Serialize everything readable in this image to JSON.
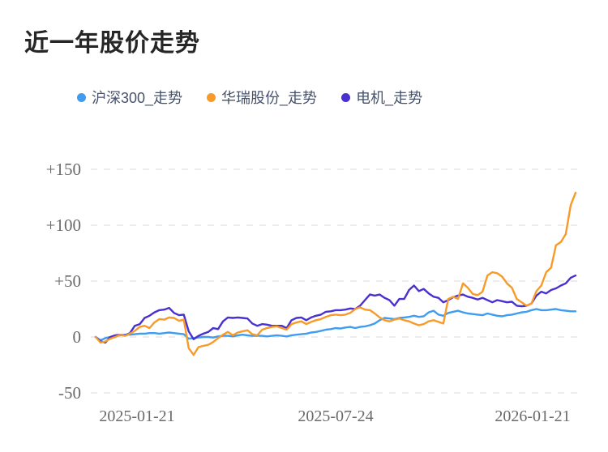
{
  "title": "近一年股价走势",
  "legend": {
    "items": [
      {
        "label": "沪深300_走势"
      },
      {
        "label": "华瑞股份_走势"
      },
      {
        "label": "电机_走势"
      }
    ]
  },
  "colors": {
    "title_text": "#262626",
    "legend_text": "#46516b",
    "axis_text": "#6a6a6a",
    "gridline": "#ececec",
    "background": "#ffffff"
  },
  "chart_data": {
    "type": "line",
    "title": "近一年股价走势",
    "xlabel": "",
    "ylabel": "",
    "ylim": [
      -50,
      150
    ],
    "grid": "horizontal dashed",
    "legend_position": "top",
    "y_ticks": [
      150,
      100,
      50,
      0,
      -50
    ],
    "y_tick_labels": [
      "+150",
      "+100",
      "+50",
      "0",
      "-50"
    ],
    "x_tick_labels": [
      "2025-01-21",
      "2025-07-24",
      "2026-01-21"
    ],
    "x_range_dates": [
      "2025-01-21",
      "2026-01-21"
    ],
    "unit": "percent change",
    "draw_order": [
      0,
      2,
      1
    ],
    "series": [
      {
        "name": "沪深300_走势",
        "color": "#3E9DF1",
        "values": [
          0,
          -3,
          -1,
          0,
          1,
          1.5,
          2,
          2,
          2.5,
          3,
          3,
          3.5,
          3.5,
          3,
          3.5,
          4,
          3.5,
          3,
          2.5,
          -1.5,
          -1,
          -0.5,
          0,
          0,
          -0.5,
          0.5,
          1,
          1,
          0.5,
          1.5,
          2,
          1.5,
          1,
          1,
          1,
          0.5,
          1,
          1.5,
          1,
          0.5,
          1.5,
          2,
          2.5,
          3,
          4,
          4.5,
          5.5,
          6.5,
          7,
          8,
          7.5,
          8.5,
          9,
          8,
          9,
          9.5,
          10.5,
          12,
          15,
          17,
          16.5,
          16,
          17,
          17.5,
          18,
          19,
          18,
          18.5,
          22,
          23.5,
          20,
          19,
          21.5,
          22.5,
          23.5,
          22,
          21,
          20.5,
          20,
          19.5,
          21,
          20,
          19,
          18.5,
          19.5,
          20,
          21,
          22,
          22.5,
          24,
          25,
          24,
          24,
          24.5,
          25,
          24,
          23.5,
          23,
          23
        ]
      },
      {
        "name": "华瑞股份_走势",
        "color": "#F89A28",
        "values": [
          0,
          -5,
          -4,
          -1.5,
          0,
          2,
          1,
          3,
          5.5,
          9,
          10,
          8,
          13,
          16,
          15.5,
          17.5,
          17,
          14.5,
          15.5,
          -10,
          -16,
          -9,
          -8,
          -7,
          -4.5,
          -1,
          2,
          4.5,
          1.5,
          4,
          5,
          6,
          2.5,
          1.5,
          6.5,
          8,
          9,
          9.5,
          8,
          6.5,
          11.5,
          13,
          14,
          11.5,
          13.5,
          15,
          16,
          18,
          19.5,
          20,
          19.5,
          20,
          21.5,
          25,
          26.5,
          24.5,
          24,
          21,
          17.5,
          15,
          14,
          15.5,
          16.5,
          15,
          14,
          12,
          10.5,
          11.5,
          14,
          15,
          13.5,
          12,
          34,
          36,
          34,
          48,
          44,
          38.5,
          37.5,
          40.5,
          55,
          58,
          57,
          54,
          48,
          44,
          34,
          31,
          28,
          30,
          41,
          46,
          58,
          62,
          82,
          85,
          92,
          118,
          129
        ]
      },
      {
        "name": "电机_走势",
        "color": "#4930D2",
        "values": [
          0,
          -4,
          -5,
          0,
          1.5,
          2,
          1.5,
          3.5,
          10,
          11.5,
          17,
          19,
          22,
          24,
          24.5,
          26,
          21.5,
          19.5,
          20,
          5,
          -2,
          1,
          3,
          4.5,
          8,
          7,
          14,
          17.5,
          17,
          17.5,
          17,
          16.5,
          12,
          10,
          11.5,
          11,
          10,
          10,
          10,
          8,
          15,
          17,
          17.5,
          15,
          17.5,
          19,
          20,
          22.5,
          23,
          24,
          24,
          24.5,
          25.5,
          25,
          28,
          33,
          38,
          37,
          38,
          35,
          33,
          28,
          34,
          34,
          42,
          46,
          41,
          43,
          39,
          36,
          35,
          31,
          33,
          35.5,
          37,
          38,
          36,
          35,
          33.5,
          35,
          33,
          31,
          33,
          32,
          31,
          31.5,
          28,
          27.5,
          28,
          30,
          37,
          40.5,
          39,
          42,
          43.5,
          46,
          48,
          53,
          55
        ]
      }
    ]
  }
}
